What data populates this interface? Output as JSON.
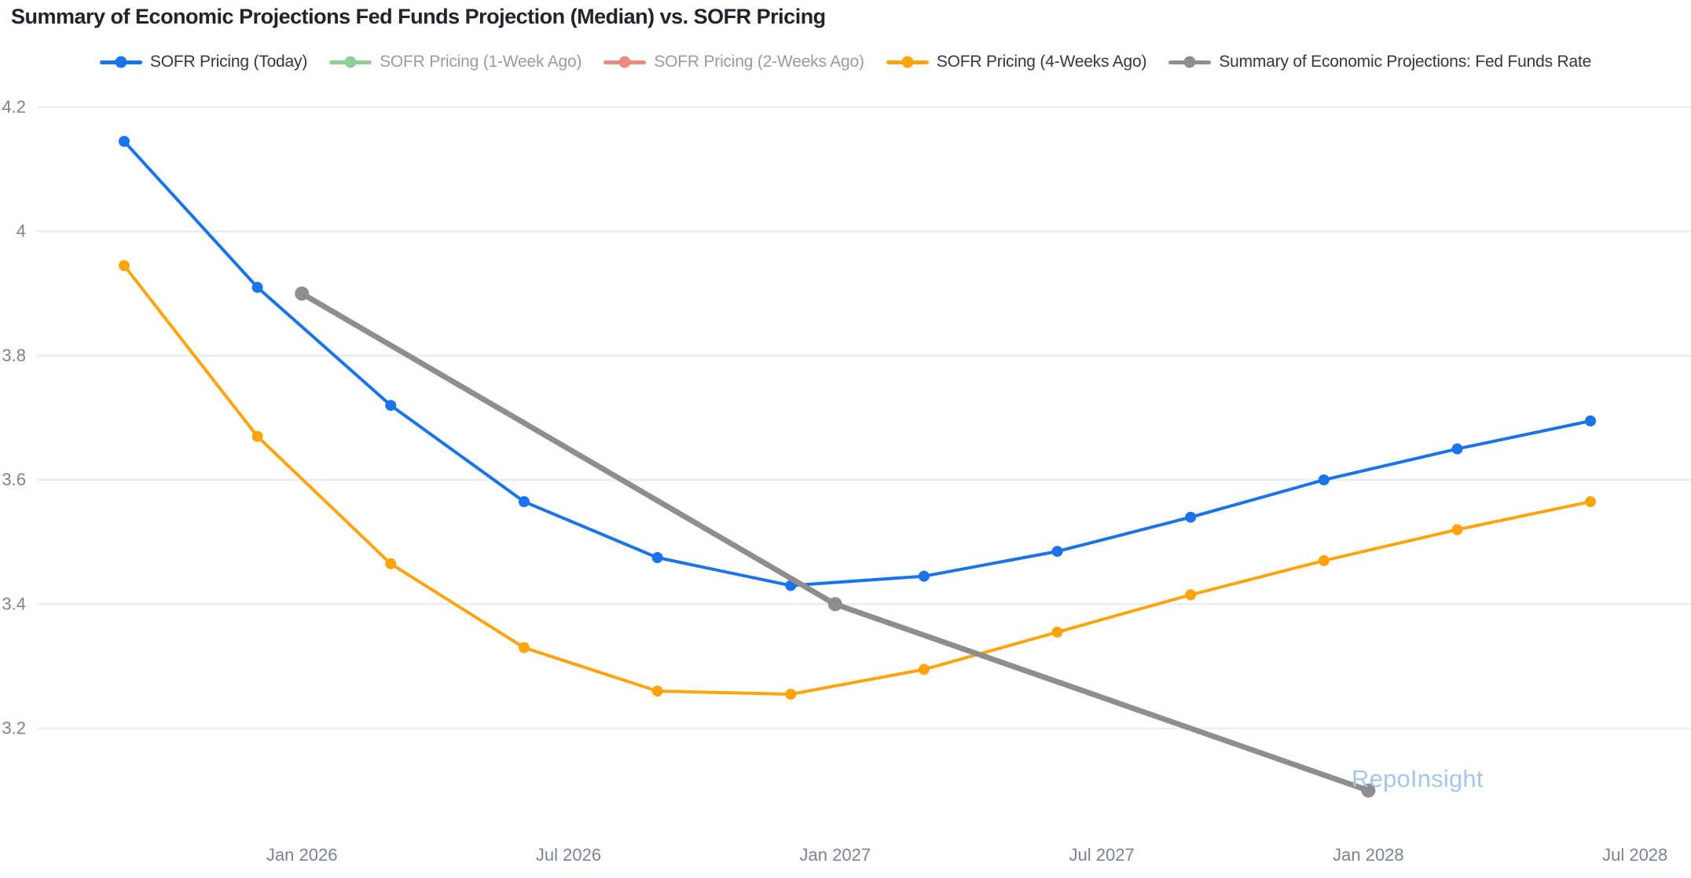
{
  "chart_data": {
    "type": "line",
    "title": "Summary of Economic Projections Fed Funds Projection (Median) vs. SOFR Pricing",
    "watermark": "RepoInsight",
    "background_color": "#ffffff",
    "grid_color": "#e6ebf4",
    "axis_text_color": "#7d8295",
    "legend_text_enabled_color": "#33373f",
    "legend_text_disabled_color": "#9b9b9b",
    "grid_on": true,
    "legend_position": "top-center",
    "x_axis": {
      "unit": "months since Sep 2025",
      "ticks": [
        {
          "label": "Jan 2026",
          "month": 4
        },
        {
          "label": "Jul 2026",
          "month": 10
        },
        {
          "label": "Jan 2027",
          "month": 16
        },
        {
          "label": "Jul 2027",
          "month": 22
        },
        {
          "label": "Jan 2028",
          "month": 28
        },
        {
          "label": "Jul 2028",
          "month": 34
        }
      ]
    },
    "y_axis": {
      "range": [
        3.05,
        4.25
      ],
      "ticks": [
        {
          "label": "4.2",
          "value": 4.2
        },
        {
          "label": "4",
          "value": 4.0
        },
        {
          "label": "3.8",
          "value": 3.8
        },
        {
          "label": "3.6",
          "value": 3.6
        },
        {
          "label": "3.4",
          "value": 3.4
        },
        {
          "label": "3.2",
          "value": 3.2
        }
      ]
    },
    "series": [
      {
        "name": "SOFR Pricing (Today)",
        "color": "#1a73e8",
        "enabled": true,
        "line_width": 4,
        "marker_radius": 7,
        "x_months": [
          0,
          3,
          6,
          9,
          12,
          15,
          18,
          21,
          24,
          27,
          30,
          33
        ],
        "values": [
          4.145,
          3.91,
          3.72,
          3.565,
          3.475,
          3.43,
          3.445,
          3.485,
          3.54,
          3.6,
          3.65,
          3.695
        ]
      },
      {
        "name": "SOFR Pricing (1-Week Ago)",
        "color": "#8fcf96",
        "enabled": false,
        "line_width": 4,
        "marker_radius": 7,
        "x_months": [],
        "values": []
      },
      {
        "name": "SOFR Pricing (2-Weeks Ago)",
        "color": "#ea8a80",
        "enabled": false,
        "line_width": 4,
        "marker_radius": 7,
        "x_months": [],
        "values": []
      },
      {
        "name": "SOFR Pricing (4-Weeks Ago)",
        "color": "#ffa40e",
        "enabled": true,
        "line_width": 4,
        "marker_radius": 7,
        "x_months": [
          0,
          3,
          6,
          9,
          12,
          15,
          18,
          21,
          24,
          27,
          30,
          33
        ],
        "values": [
          3.945,
          3.67,
          3.465,
          3.33,
          3.26,
          3.255,
          3.295,
          3.355,
          3.415,
          3.47,
          3.52,
          3.565
        ]
      },
      {
        "name": "Summary of Economic Projections: Fed Funds Rate",
        "color": "#8e8e8e",
        "enabled": true,
        "line_width": 7,
        "marker_radius": 9,
        "x_months": [
          4,
          16,
          28
        ],
        "values": [
          3.9,
          3.4,
          3.1
        ]
      }
    ]
  }
}
